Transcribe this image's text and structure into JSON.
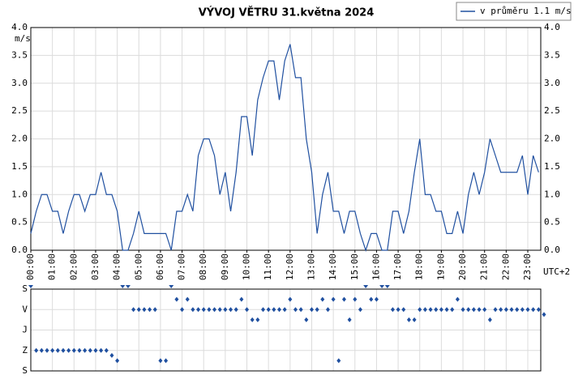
{
  "chart_data": [
    {
      "type": "line",
      "title": "VÝVOJ VĚTRU  31.května 2024",
      "y_label": "m/s",
      "x_label": "UTC+2",
      "x": [
        0,
        0.25,
        0.5,
        0.75,
        1,
        1.25,
        1.5,
        1.75,
        2,
        2.25,
        2.5,
        2.75,
        3,
        3.25,
        3.5,
        3.75,
        4,
        4.25,
        4.5,
        4.75,
        5,
        5.25,
        5.5,
        5.75,
        6,
        6.25,
        6.5,
        6.75,
        7,
        7.25,
        7.5,
        7.75,
        8,
        8.25,
        8.5,
        8.75,
        9,
        9.25,
        9.5,
        9.75,
        10,
        10.25,
        10.5,
        10.75,
        11,
        11.25,
        11.5,
        11.75,
        12,
        12.25,
        12.5,
        12.75,
        13,
        13.25,
        13.5,
        13.75,
        14,
        14.25,
        14.5,
        14.75,
        15,
        15.25,
        15.5,
        15.75,
        16,
        16.25,
        16.5,
        16.75,
        17,
        17.25,
        17.5,
        17.75,
        18,
        18.25,
        18.5,
        18.75,
        19,
        19.25,
        19.5,
        19.75,
        20,
        20.25,
        20.5,
        20.75,
        21,
        21.25,
        21.5,
        21.75,
        22,
        22.25,
        22.5,
        22.75,
        23,
        23.25,
        23.5
      ],
      "series": [
        {
          "name": "v průměru 1.1 m/s",
          "color": "#2050a0",
          "values": [
            0.3,
            0.7,
            1.0,
            1.0,
            0.7,
            0.7,
            0.3,
            0.7,
            1.0,
            1.0,
            0.7,
            1.0,
            1.0,
            1.4,
            1.0,
            1.0,
            0.7,
            0.0,
            0.0,
            0.3,
            0.7,
            0.3,
            0.3,
            0.3,
            0.3,
            0.3,
            0.0,
            0.7,
            0.7,
            1.0,
            0.7,
            1.7,
            2.0,
            2.0,
            1.7,
            1.0,
            1.4,
            0.7,
            1.4,
            2.4,
            2.4,
            1.7,
            2.7,
            3.1,
            3.4,
            3.4,
            2.7,
            3.4,
            3.7,
            3.1,
            3.1,
            2.0,
            1.4,
            0.3,
            1.0,
            1.4,
            0.7,
            0.7,
            0.3,
            0.7,
            0.7,
            0.3,
            0.0,
            0.3,
            0.3,
            0.0,
            0.0,
            0.7,
            0.7,
            0.3,
            0.7,
            1.4,
            2.0,
            1.0,
            1.0,
            0.7,
            0.7,
            0.3,
            0.3,
            0.7,
            0.3,
            1.0,
            1.4,
            1.0,
            1.4,
            2.0,
            1.7,
            1.4,
            1.4,
            1.4,
            1.4,
            1.7,
            1.0,
            1.7,
            1.4
          ]
        }
      ],
      "xlim": [
        0,
        23.6
      ],
      "ylim": [
        0,
        4
      ],
      "yticks": [
        {
          "value": 0,
          "label": "0.0"
        },
        {
          "value": 0.5,
          "label": "0.5"
        },
        {
          "value": 1,
          "label": "1.0"
        },
        {
          "value": 1.5,
          "label": "1.5"
        },
        {
          "value": 2,
          "label": "2.0"
        },
        {
          "value": 2.5,
          "label": "2.5"
        },
        {
          "value": 3,
          "label": "3.0"
        },
        {
          "value": 3.5,
          "label": "3.5"
        },
        {
          "value": 4,
          "label": "4.0"
        }
      ],
      "xticks": [
        {
          "value": 0,
          "label": "00:00"
        },
        {
          "value": 1,
          "label": "01:00"
        },
        {
          "value": 2,
          "label": "02:00"
        },
        {
          "value": 3,
          "label": "03:00"
        },
        {
          "value": 4,
          "label": "04:00"
        },
        {
          "value": 5,
          "label": "05:00"
        },
        {
          "value": 6,
          "label": "06:00"
        },
        {
          "value": 7,
          "label": "07:00"
        },
        {
          "value": 8,
          "label": "08:00"
        },
        {
          "value": 9,
          "label": "09:00"
        },
        {
          "value": 10,
          "label": "10:00"
        },
        {
          "value": 11,
          "label": "11:00"
        },
        {
          "value": 12,
          "label": "12:00"
        },
        {
          "value": 13,
          "label": "13:00"
        },
        {
          "value": 14,
          "label": "14:00"
        },
        {
          "value": 15,
          "label": "15:00"
        },
        {
          "value": 16,
          "label": "16:00"
        },
        {
          "value": 17,
          "label": "17:00"
        },
        {
          "value": 18,
          "label": "18:00"
        },
        {
          "value": 19,
          "label": "19:00"
        },
        {
          "value": 20,
          "label": "20:00"
        },
        {
          "value": 21,
          "label": "21:00"
        },
        {
          "value": 22,
          "label": "22:00"
        },
        {
          "value": 23,
          "label": "23:00"
        }
      ],
      "grid": true
    },
    {
      "type": "scatter",
      "color": "#2050a0",
      "x": [
        0,
        0.25,
        0.5,
        0.75,
        1,
        1.25,
        1.5,
        1.75,
        2,
        2.25,
        2.5,
        2.75,
        3,
        3.25,
        3.5,
        3.75,
        4,
        4.25,
        4.5,
        4.75,
        5,
        5.25,
        5.5,
        5.75,
        6,
        6.25,
        6.5,
        6.75,
        7,
        7.25,
        7.5,
        7.75,
        8,
        8.25,
        8.5,
        8.75,
        9,
        9.25,
        9.5,
        9.75,
        10,
        10.25,
        10.5,
        10.75,
        11,
        11.25,
        11.5,
        11.75,
        12,
        12.25,
        12.5,
        12.75,
        13,
        13.25,
        13.5,
        13.75,
        14,
        14.25,
        14.5,
        14.75,
        15,
        15.25,
        15.5,
        15.75,
        16,
        16.25,
        16.5,
        16.75,
        17,
        17.25,
        17.5,
        17.75,
        18,
        18.25,
        18.5,
        18.75,
        19,
        19.25,
        19.5,
        19.75,
        20,
        20.25,
        20.5,
        20.75,
        21,
        21.25,
        21.5,
        21.75,
        22,
        22.25,
        22.5,
        22.75,
        23,
        23.25,
        23.5,
        23.75
      ],
      "values": [
        0,
        270,
        270,
        270,
        270,
        270,
        270,
        270,
        270,
        270,
        270,
        270,
        270,
        270,
        270,
        292,
        315,
        0,
        0,
        90,
        90,
        90,
        90,
        90,
        315,
        315,
        0,
        45,
        90,
        45,
        90,
        90,
        90,
        90,
        90,
        90,
        90,
        90,
        90,
        45,
        90,
        135,
        135,
        90,
        90,
        90,
        90,
        90,
        45,
        90,
        90,
        135,
        90,
        90,
        45,
        90,
        45,
        315,
        45,
        135,
        45,
        90,
        0,
        45,
        45,
        0,
        0,
        90,
        90,
        90,
        135,
        135,
        90,
        90,
        90,
        90,
        90,
        90,
        90,
        45,
        90,
        90,
        90,
        90,
        90,
        135,
        90,
        90,
        90,
        90,
        90,
        90,
        90,
        90,
        90,
        112
      ],
      "xlim": [
        0,
        23.6
      ],
      "ylim": [
        0,
        360
      ],
      "yticks": [
        {
          "value": 0,
          "label": "S"
        },
        {
          "value": 90,
          "label": "V"
        },
        {
          "value": 180,
          "label": "J"
        },
        {
          "value": 270,
          "label": "Z"
        },
        {
          "value": 360,
          "label": "S"
        }
      ],
      "grid": true
    }
  ]
}
